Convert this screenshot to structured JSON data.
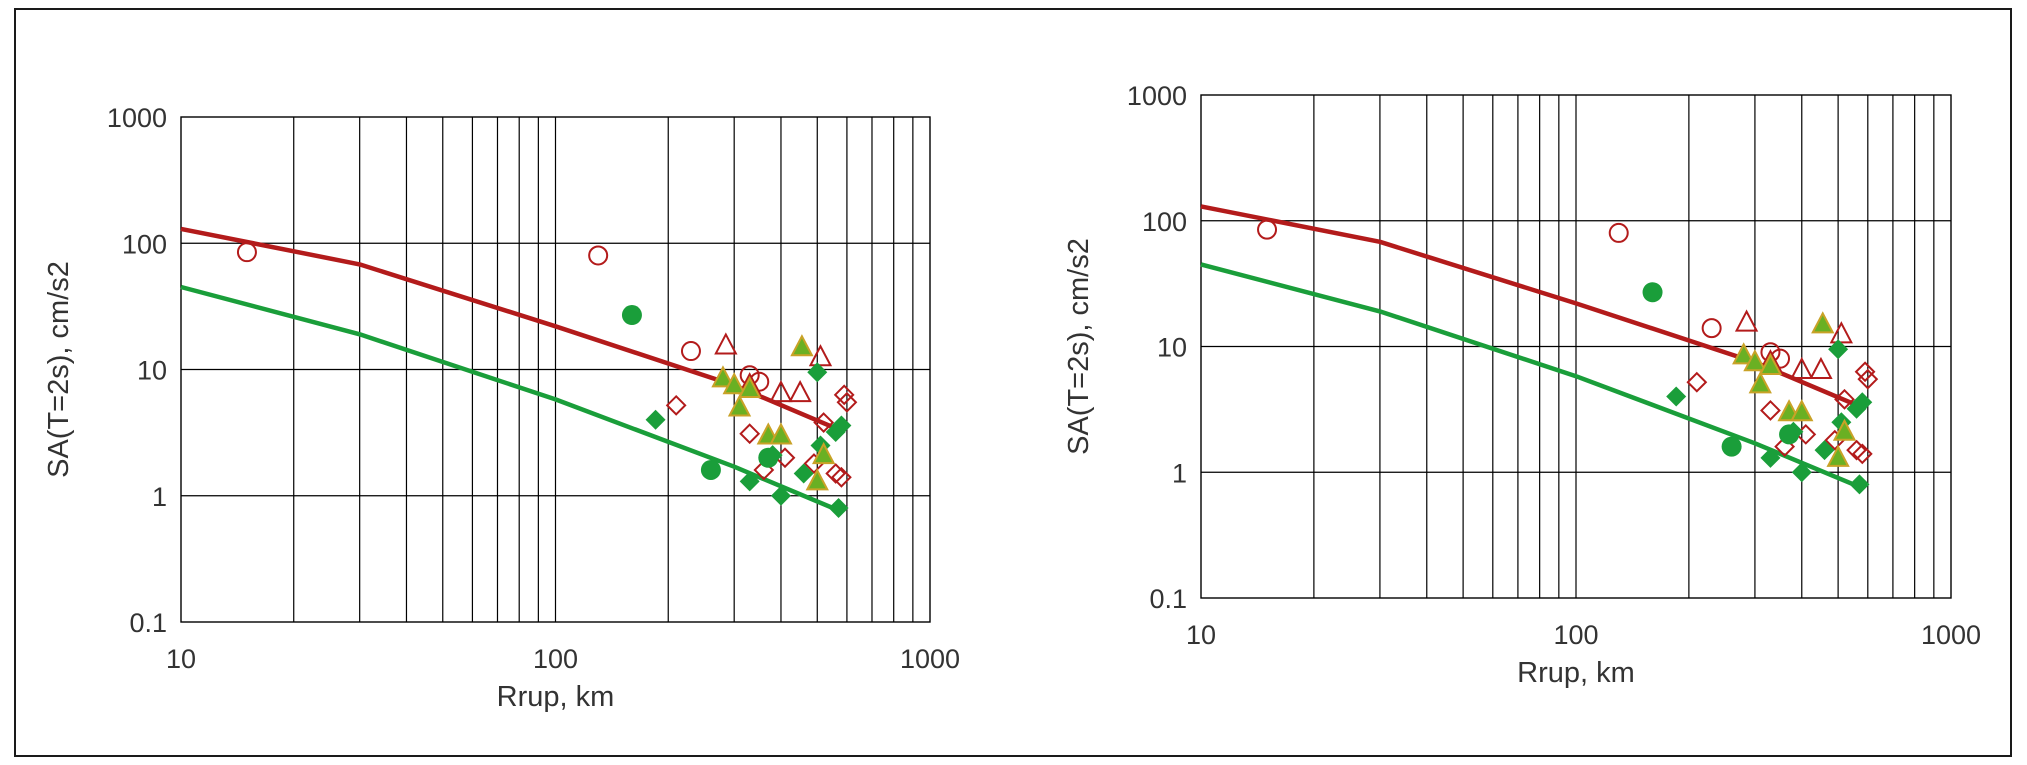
{
  "colors": {
    "red": "#b31b1b",
    "green": "#1a9e3a",
    "triangle_fill": "#6ab023",
    "triangle_stroke": "#c9a227",
    "grid": "#000000",
    "text": "#333333"
  },
  "chart_data": [
    {
      "type": "scatter",
      "xlabel": "Rrup, km",
      "ylabel": "SA(T=2s), cm/s2",
      "xscale": "log",
      "yscale": "log",
      "xlim": [
        10,
        1000
      ],
      "ylim": [
        0.1,
        1000
      ],
      "xticks": [
        "10",
        "100",
        "1000"
      ],
      "yticks": [
        "0.1",
        "1",
        "10",
        "100",
        "1000"
      ],
      "grid": true,
      "series": [
        {
          "marker": "line",
          "color": "red",
          "x": [
            10,
            30,
            100,
            300,
            550
          ],
          "y": [
            130,
            68,
            22,
            7.5,
            3.5
          ]
        },
        {
          "marker": "line",
          "color": "green",
          "x": [
            10,
            30,
            100,
            300,
            550
          ],
          "y": [
            45,
            19,
            5.8,
            1.7,
            0.8
          ]
        },
        {
          "marker": "open-circle",
          "color": "red",
          "x": [
            15,
            130,
            230,
            330,
            350
          ],
          "y": [
            85,
            80,
            14,
            9,
            8
          ]
        },
        {
          "marker": "open-triangle",
          "color": "red",
          "x": [
            285,
            330,
            400,
            450,
            510
          ],
          "y": [
            15.5,
            7.5,
            6.5,
            6.5,
            12.5
          ]
        },
        {
          "marker": "open-diamond",
          "color": "red",
          "x": [
            210,
            330,
            360,
            410,
            490,
            520,
            560,
            580,
            590,
            600
          ],
          "y": [
            5.2,
            3.1,
            1.6,
            2,
            1.8,
            3.8,
            1.5,
            1.4,
            6.3,
            5.5
          ]
        },
        {
          "marker": "filled-circle",
          "color": "green",
          "x": [
            160,
            260,
            370
          ],
          "y": [
            27,
            1.6,
            2
          ]
        },
        {
          "marker": "filled-diamond",
          "color": "green",
          "x": [
            185,
            330,
            380,
            400,
            460,
            500,
            510,
            560,
            570,
            580
          ],
          "y": [
            4,
            1.3,
            2.1,
            1,
            1.5,
            9.5,
            2.5,
            3.2,
            0.8,
            3.6
          ]
        },
        {
          "marker": "filled-triangle",
          "color": "green",
          "x": [
            280,
            300,
            310,
            330,
            370,
            400,
            455,
            500,
            520
          ],
          "y": [
            8.5,
            7.5,
            5,
            7,
            3,
            3,
            15,
            1.3,
            2.1
          ]
        }
      ]
    },
    {
      "type": "scatter",
      "xlabel": "Rrup, km",
      "ylabel": "SA(T=2s), cm/s2",
      "xscale": "log",
      "yscale": "log",
      "xlim": [
        10,
        1000
      ],
      "ylim": [
        0.1,
        1000
      ],
      "xticks": [
        "10",
        "100",
        "1000"
      ],
      "yticks": [
        "0.1",
        "1",
        "10",
        "100",
        "1000"
      ],
      "grid": true,
      "series": [
        {
          "marker": "line",
          "color": "red",
          "x": [
            10,
            30,
            100,
            300,
            550
          ],
          "y": [
            130,
            68,
            22,
            7.5,
            3.5
          ]
        },
        {
          "marker": "line",
          "color": "green",
          "x": [
            10,
            30,
            100,
            300,
            550
          ],
          "y": [
            45,
            19,
            5.8,
            1.7,
            0.8
          ]
        },
        {
          "marker": "open-circle",
          "color": "red",
          "x": [
            15,
            130,
            230,
            330,
            350
          ],
          "y": [
            85,
            80,
            14,
            9,
            8
          ]
        },
        {
          "marker": "open-triangle",
          "color": "red",
          "x": [
            285,
            330,
            400,
            450,
            510
          ],
          "y": [
            15.5,
            7.5,
            6.5,
            6.5,
            12.5
          ]
        },
        {
          "marker": "open-diamond",
          "color": "red",
          "x": [
            210,
            330,
            360,
            410,
            490,
            520,
            560,
            580,
            590,
            600
          ],
          "y": [
            5.2,
            3.1,
            1.6,
            2,
            1.8,
            3.8,
            1.5,
            1.4,
            6.3,
            5.5
          ]
        },
        {
          "marker": "filled-circle",
          "color": "green",
          "x": [
            160,
            260,
            370
          ],
          "y": [
            27,
            1.6,
            2
          ]
        },
        {
          "marker": "filled-diamond",
          "color": "green",
          "x": [
            185,
            330,
            380,
            400,
            460,
            500,
            510,
            560,
            570,
            580
          ],
          "y": [
            4,
            1.3,
            2.1,
            1,
            1.5,
            9.5,
            2.5,
            3.2,
            0.8,
            3.6
          ]
        },
        {
          "marker": "filled-triangle",
          "color": "green",
          "x": [
            280,
            300,
            310,
            330,
            370,
            400,
            455,
            500,
            520
          ],
          "y": [
            8.5,
            7.5,
            5,
            7,
            3,
            3,
            15,
            1.3,
            2.1
          ]
        }
      ]
    }
  ]
}
